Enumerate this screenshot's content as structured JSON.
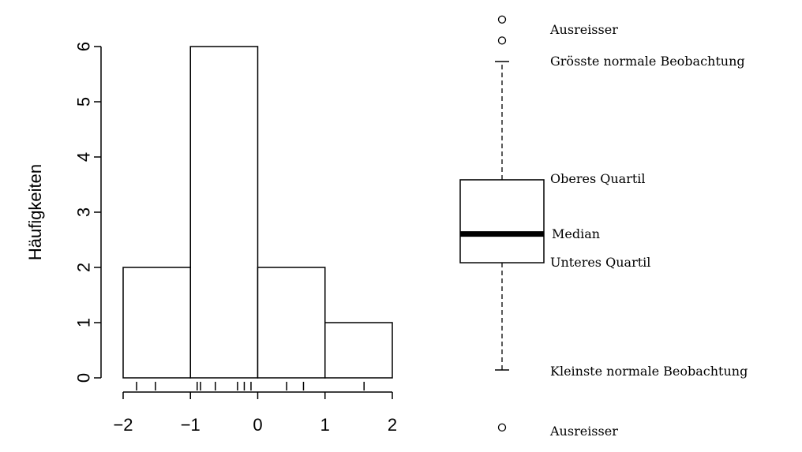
{
  "chart_data": [
    {
      "type": "histogram",
      "ylabel": "Häufigkeiten",
      "xlabel": "",
      "bins": [
        {
          "from": -2,
          "to": -1,
          "count": 2
        },
        {
          "from": -1,
          "to": 0,
          "count": 6
        },
        {
          "from": 0,
          "to": 1,
          "count": 2
        },
        {
          "from": 1,
          "to": 2,
          "count": 1
        }
      ],
      "rug": [
        -1.8,
        -1.52,
        -0.9,
        -0.85,
        -0.63,
        -0.3,
        -0.2,
        -0.1,
        0.43,
        0.68,
        1.58
      ],
      "xlim": [
        -2,
        2
      ],
      "ylim": [
        0,
        6
      ],
      "x_ticks": [
        -2,
        -1,
        0,
        1,
        2
      ],
      "x_tick_labels": [
        "−2",
        "−1",
        "0",
        "1",
        "2"
      ],
      "y_ticks": [
        0,
        1,
        2,
        3,
        4,
        5,
        6
      ],
      "y_tick_labels": [
        "0",
        "1",
        "2",
        "3",
        "4",
        "5",
        "6"
      ]
    },
    {
      "type": "boxplot",
      "axes": false,
      "min_normal": 0.14,
      "lower_quartile": 2.08,
      "median": 2.6,
      "upper_quartile": 3.58,
      "max_normal": 5.72,
      "outliers": [
        6.48,
        6.1,
        -0.9
      ],
      "annotations": {
        "outlier_top": "Ausreisser",
        "max_normal": "Grösste normale Beobachtung",
        "upper_quartile": "Oberes Quartil",
        "median": "Median",
        "lower_quartile": "Unteres Quartil",
        "min_normal": "Kleinste normale Beobachtung",
        "outlier_bottom": "Ausreisser"
      }
    }
  ]
}
